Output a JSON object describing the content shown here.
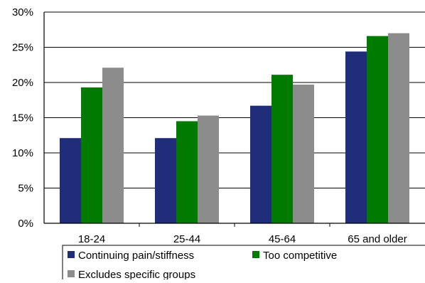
{
  "chart_data": {
    "type": "bar",
    "title": "",
    "xlabel": "",
    "ylabel": "",
    "categories": [
      "18-24",
      "25-44",
      "45-64",
      "65 and older"
    ],
    "series": [
      {
        "name": "Continuing pain/stiffness",
        "color": "#1f2d7a",
        "values": [
          12.1,
          12.1,
          16.7,
          24.4
        ]
      },
      {
        "name": "Too competitive",
        "color": "#007a00",
        "values": [
          19.3,
          14.5,
          21.1,
          26.6
        ]
      },
      {
        "name": "Excludes specific groups",
        "color": "#8c8c8c",
        "values": [
          22.1,
          15.3,
          19.7,
          27.0
        ]
      }
    ],
    "ylim": [
      0,
      30
    ],
    "yticks": [
      0,
      5,
      10,
      15,
      20,
      25,
      30
    ],
    "ytick_labels": [
      "0%",
      "5%",
      "10%",
      "15%",
      "20%",
      "25%",
      "30%"
    ],
    "grid": true,
    "legend_position": "bottom"
  }
}
